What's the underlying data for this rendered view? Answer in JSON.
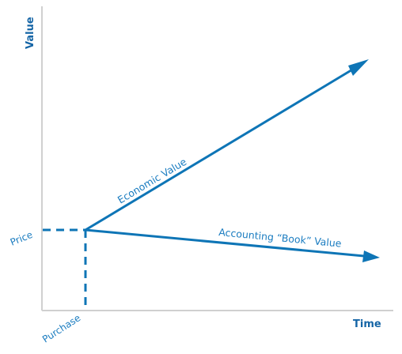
{
  "axes": {
    "y_title": "Value",
    "x_title": "Time"
  },
  "markers": {
    "price_label": "Price",
    "purchase_label": "Purchase"
  },
  "lines": {
    "economic_label": "Economic Value",
    "accounting_label": "Accounting “Book” Value"
  },
  "colors": {
    "accent": "#0e75b6",
    "axis": "#d0d0d0"
  }
}
